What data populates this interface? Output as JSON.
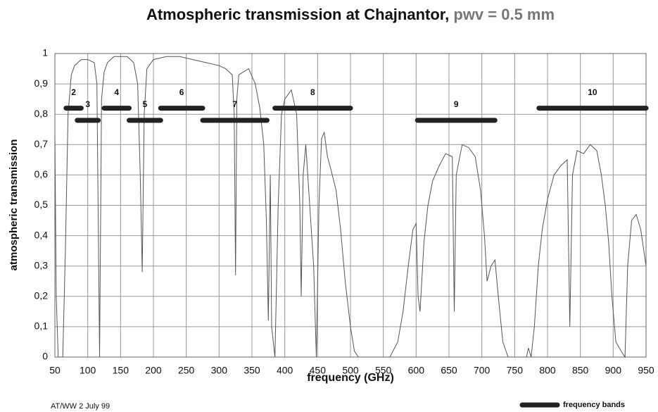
{
  "chart_data": {
    "type": "line",
    "title": "Atmospheric transmission at Chajnantor,",
    "title_note": "pwv = 0.5 mm",
    "x_label": "frequency (GHz)",
    "y_label": "atmospheric transmission",
    "footnote": "AT/WW 2 July 99",
    "legend_label": "frequency bands",
    "grid": true,
    "xlim": [
      50,
      950
    ],
    "xticks": [
      50,
      100,
      150,
      200,
      250,
      300,
      350,
      400,
      450,
      500,
      550,
      600,
      650,
      700,
      750,
      800,
      850,
      900,
      950
    ],
    "ylim": [
      0,
      1
    ],
    "yticks": [
      0,
      {
        "value": 0.1,
        "label": "0,1"
      },
      {
        "value": 0.2,
        "label": "0,2"
      },
      {
        "value": 0.3,
        "label": "0,3"
      },
      {
        "value": 0.4,
        "label": "0,4"
      },
      {
        "value": 0.5,
        "label": "0,5"
      },
      {
        "value": 0.6,
        "label": "0,6"
      },
      {
        "value": 0.7,
        "label": "0,7"
      },
      {
        "value": 0.8,
        "label": "0,8"
      },
      {
        "value": 0.9,
        "label": "0,9"
      },
      1
    ],
    "x": [
      50,
      52,
      55,
      58,
      62,
      66,
      70,
      75,
      80,
      90,
      100,
      110,
      114,
      118,
      121,
      125,
      130,
      140,
      150,
      160,
      170,
      176,
      180,
      183,
      186,
      190,
      200,
      220,
      240,
      260,
      280,
      300,
      310,
      320,
      323,
      325,
      327,
      330,
      345,
      355,
      362,
      368,
      372,
      375,
      378,
      380,
      385,
      390,
      395,
      400,
      410,
      418,
      423,
      425,
      428,
      432,
      438,
      444,
      448,
      452,
      456,
      460,
      465,
      470,
      478,
      485,
      492,
      500,
      506,
      512,
      560,
      572,
      580,
      588,
      595,
      600,
      603,
      606,
      612,
      618,
      625,
      635,
      645,
      655,
      658,
      661,
      670,
      680,
      690,
      698,
      704,
      708,
      714,
      720,
      726,
      732,
      740,
      768,
      771,
      775,
      780,
      786,
      792,
      800,
      810,
      820,
      830,
      834,
      838,
      845,
      855,
      865,
      875,
      882,
      888,
      893,
      898,
      904,
      912,
      918,
      922,
      928,
      935,
      942,
      950
    ],
    "series": [
      {
        "name": "atmospheric transmission",
        "color": "#555555",
        "values": [
          0.73,
          0.2,
          0,
          0,
          0,
          0.35,
          0.8,
          0.93,
          0.96,
          0.98,
          0.98,
          0.97,
          0.9,
          0,
          0.85,
          0.94,
          0.97,
          0.99,
          0.99,
          0.99,
          0.97,
          0.9,
          0.6,
          0.28,
          0.8,
          0.95,
          0.98,
          0.99,
          0.99,
          0.98,
          0.97,
          0.96,
          0.95,
          0.93,
          0.8,
          0.27,
          0.85,
          0.93,
          0.95,
          0.9,
          0.82,
          0.7,
          0.45,
          0.12,
          0.6,
          0.1,
          0,
          0.5,
          0.8,
          0.85,
          0.88,
          0.8,
          0.5,
          0.2,
          0.6,
          0.7,
          0.5,
          0.3,
          0,
          0.5,
          0.72,
          0.74,
          0.66,
          0.62,
          0.55,
          0.42,
          0.25,
          0.1,
          0.02,
          0,
          0,
          0.05,
          0.15,
          0.3,
          0.42,
          0.44,
          0.2,
          0.15,
          0.38,
          0.5,
          0.58,
          0.63,
          0.67,
          0.66,
          0.15,
          0.6,
          0.7,
          0.69,
          0.66,
          0.55,
          0.4,
          0.25,
          0.3,
          0.32,
          0.18,
          0.05,
          0,
          0,
          0.03,
          0,
          0.1,
          0.3,
          0.42,
          0.52,
          0.6,
          0.63,
          0.65,
          0.1,
          0.6,
          0.68,
          0.67,
          0.7,
          0.68,
          0.6,
          0.5,
          0.38,
          0.2,
          0.05,
          0.02,
          0,
          0.3,
          0.45,
          0.47,
          0.42,
          0.3
        ]
      }
    ],
    "bands": [
      {
        "label": "2",
        "start": 67,
        "end": 90,
        "level": 0.82
      },
      {
        "label": "3",
        "start": 84,
        "end": 116,
        "level": 0.78
      },
      {
        "label": "4",
        "start": 125,
        "end": 163,
        "level": 0.82
      },
      {
        "label": "5",
        "start": 163,
        "end": 211,
        "level": 0.78
      },
      {
        "label": "6",
        "start": 211,
        "end": 275,
        "level": 0.82
      },
      {
        "label": "7",
        "start": 275,
        "end": 373,
        "level": 0.78
      },
      {
        "label": "8",
        "start": 385,
        "end": 500,
        "level": 0.82
      },
      {
        "label": "9",
        "start": 602,
        "end": 720,
        "level": 0.78
      },
      {
        "label": "10",
        "start": 787,
        "end": 950,
        "level": 0.82
      }
    ]
  }
}
